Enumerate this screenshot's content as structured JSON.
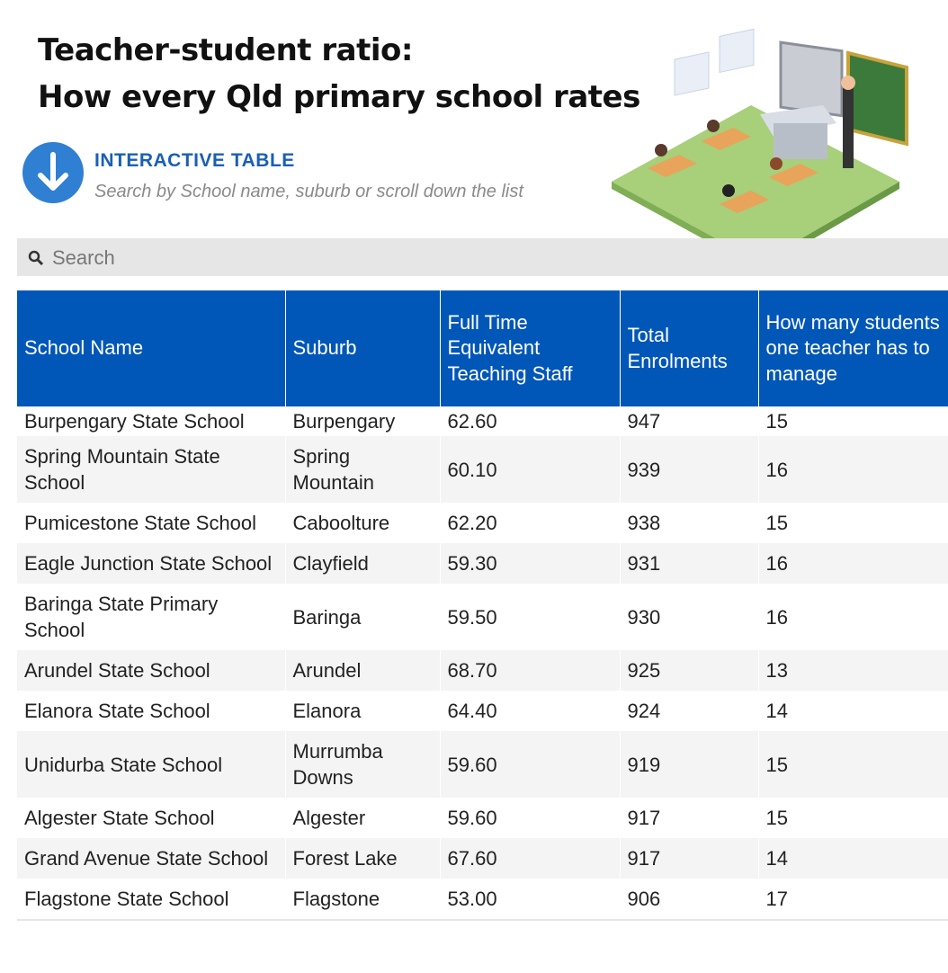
{
  "header": {
    "title_lines": [
      "Teacher-student ratio:",
      "How every Qld primary school rates"
    ],
    "kicker": "INTERACTIVE TABLE",
    "subtitle": "Search by School name, suburb or scroll down the list"
  },
  "search": {
    "placeholder": "Search"
  },
  "table": {
    "columns": [
      "School Name",
      "Suburb",
      "Full Time Equivalent Teaching Staff",
      "Total Enrolments",
      "How many students one teacher has to manage"
    ],
    "rows": [
      [
        "Burpengary State School",
        "Burpengary",
        "62.60",
        "947",
        "15"
      ],
      [
        "Spring Mountain State School",
        "Spring Mountain",
        "60.10",
        "939",
        "16"
      ],
      [
        "Pumicestone State School",
        "Caboolture",
        "62.20",
        "938",
        "15"
      ],
      [
        "Eagle Junction State School",
        "Clayfield",
        "59.30",
        "931",
        "16"
      ],
      [
        "Baringa State Primary School",
        "Baringa",
        "59.50",
        "930",
        "16"
      ],
      [
        "Arundel State School",
        "Arundel",
        "68.70",
        "925",
        "13"
      ],
      [
        "Elanora State School",
        "Elanora",
        "64.40",
        "924",
        "14"
      ],
      [
        "Unidurba State School",
        "Murrumba Downs",
        "59.60",
        "919",
        "15"
      ],
      [
        "Algester State School",
        "Algester",
        "59.60",
        "917",
        "15"
      ],
      [
        "Grand Avenue State School",
        "Forest Lake",
        "67.60",
        "917",
        "14"
      ],
      [
        "Flagstone State School",
        "Flagstone",
        "53.00",
        "906",
        "17"
      ]
    ]
  }
}
